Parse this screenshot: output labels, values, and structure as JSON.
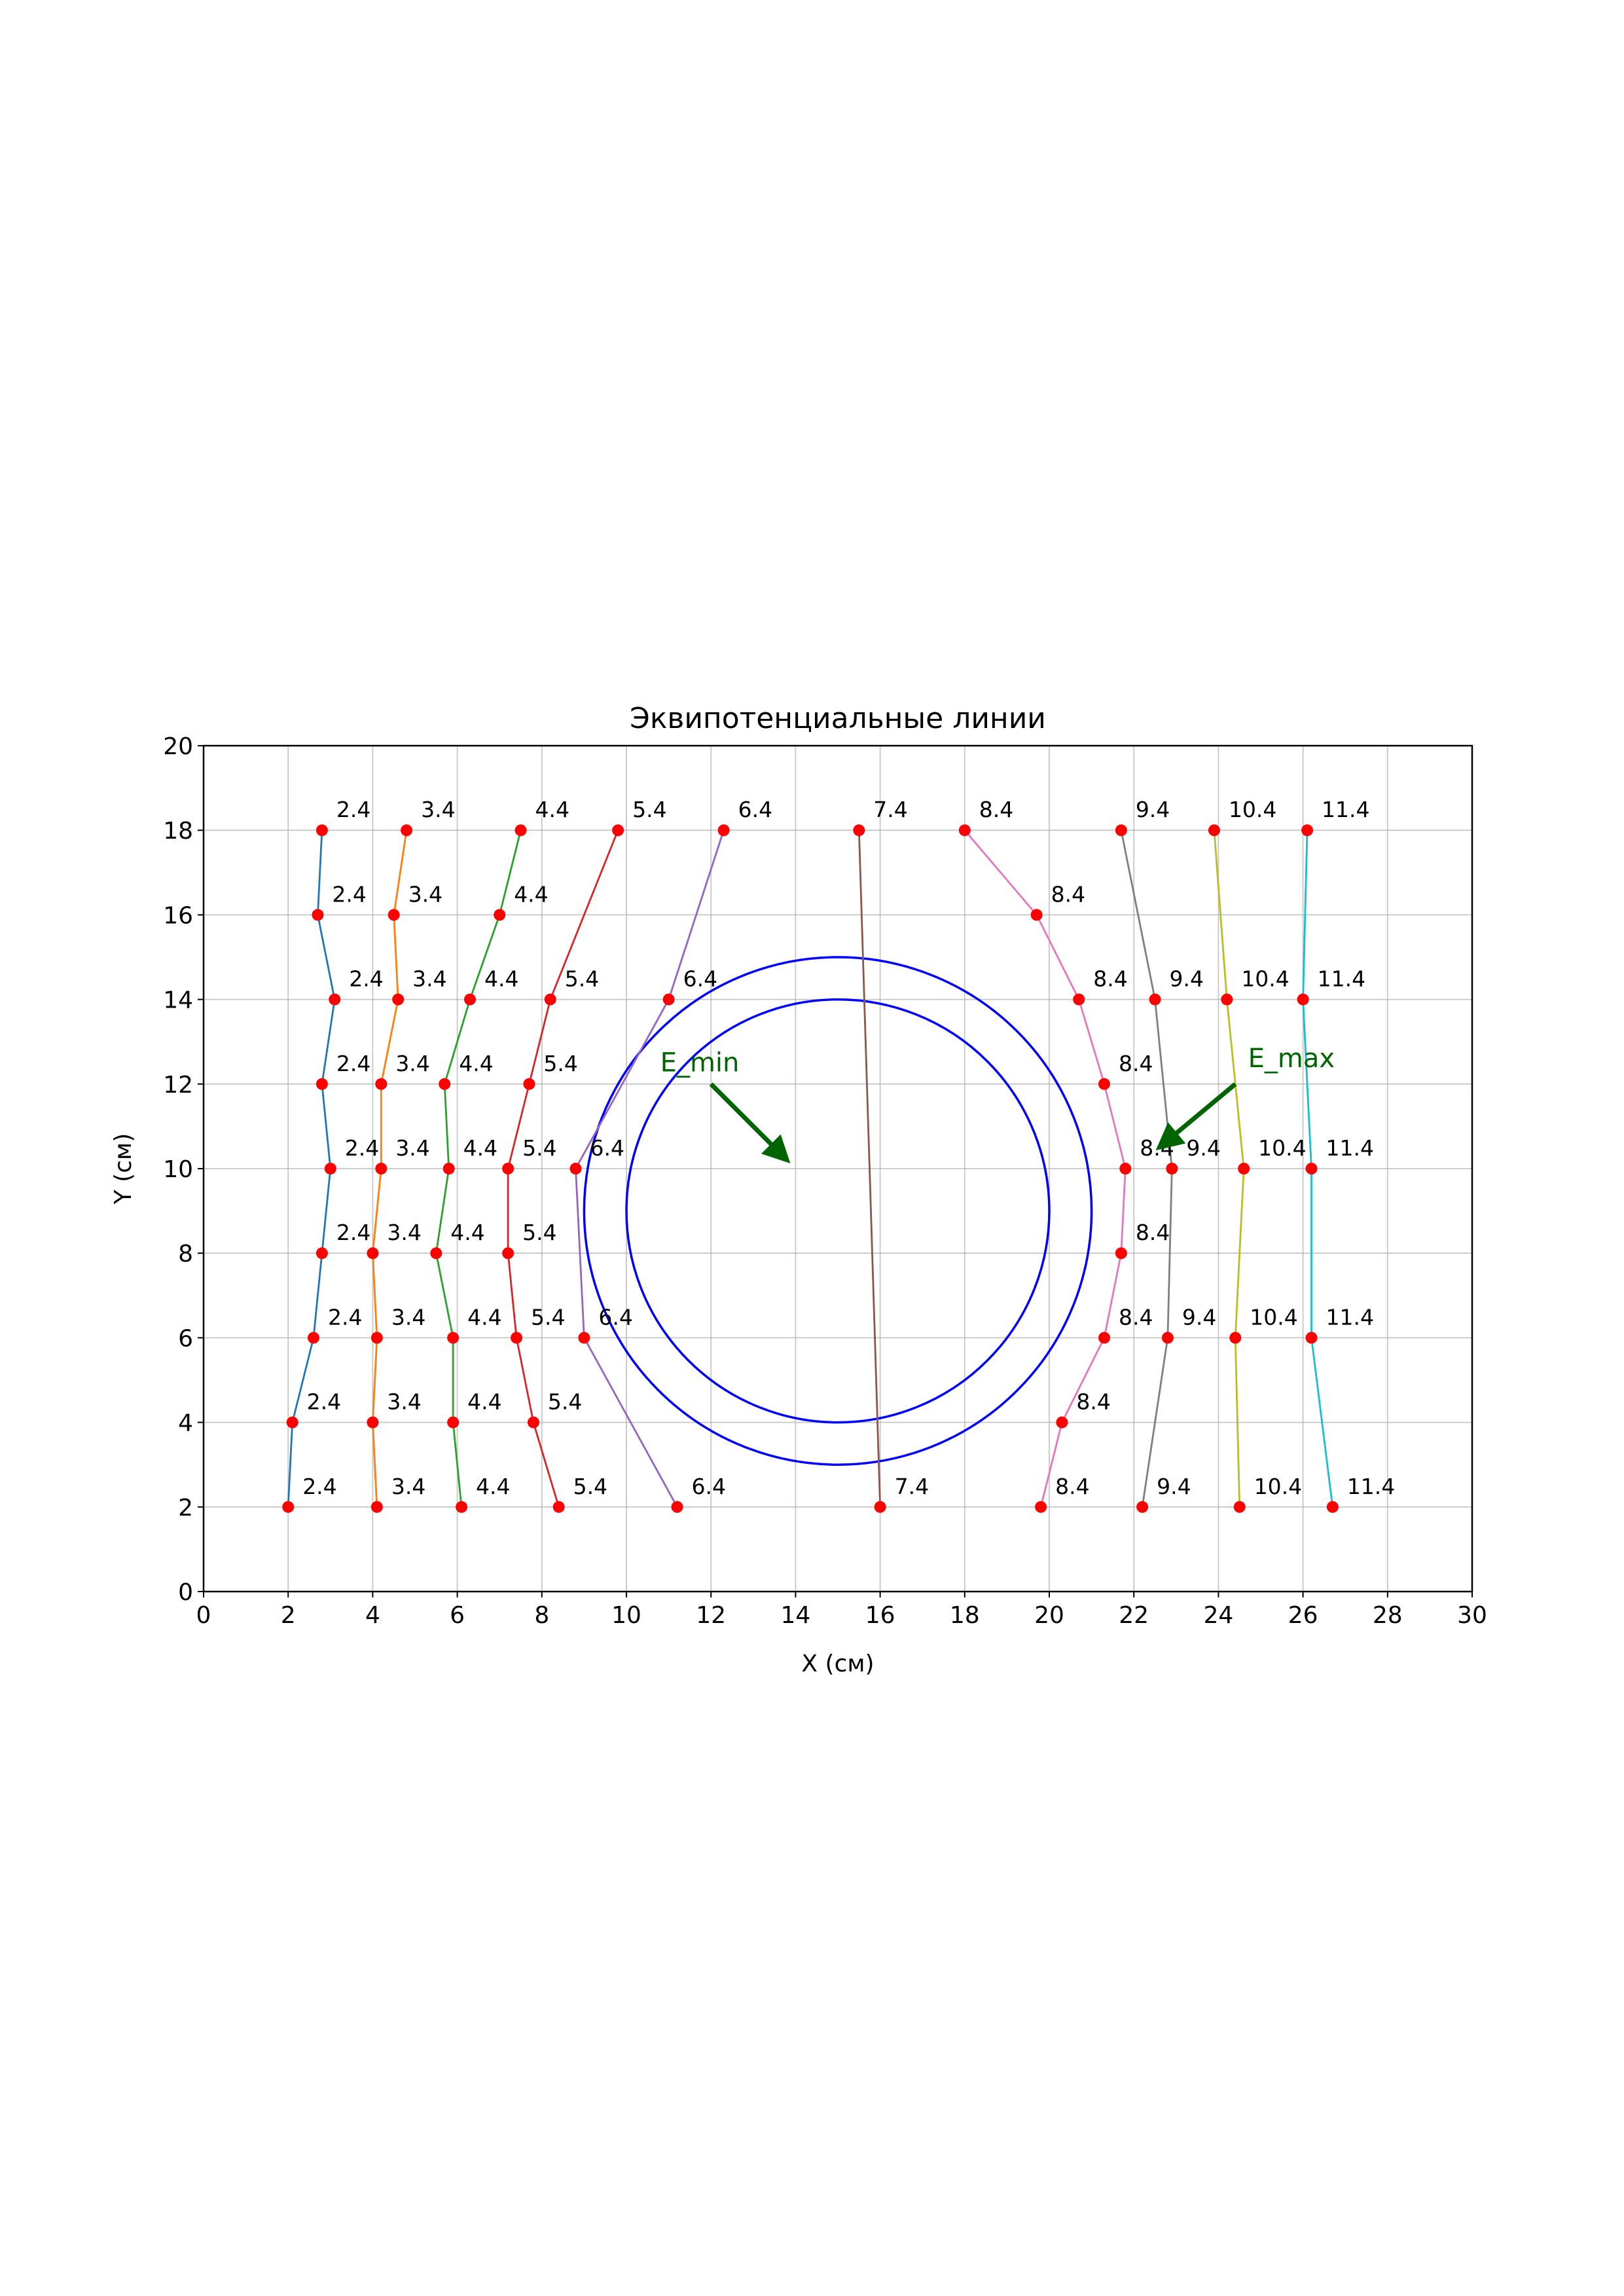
{
  "chart_data": {
    "type": "line",
    "title": "Эквипотенциальные линии",
    "xlabel": "X (см)",
    "ylabel": "Y (см)",
    "xlim": [
      0,
      30
    ],
    "ylim": [
      0,
      20
    ],
    "xticks": [
      "0",
      "2",
      "4",
      "6",
      "8",
      "10",
      "12",
      "14",
      "16",
      "18",
      "20",
      "22",
      "24",
      "26",
      "28",
      "30"
    ],
    "yticks": [
      "0",
      "2",
      "4",
      "6",
      "8",
      "10",
      "12",
      "14",
      "16",
      "18",
      "20"
    ],
    "grid": true,
    "marker_color": "#ff0000",
    "series": [
      {
        "label": "2.4",
        "color": "#1f77b4",
        "points": [
          [
            2.8,
            18
          ],
          [
            2.7,
            16
          ],
          [
            3.1,
            14
          ],
          [
            2.8,
            12
          ],
          [
            3.0,
            10
          ],
          [
            2.8,
            8
          ],
          [
            2.6,
            6
          ],
          [
            2.1,
            4
          ],
          [
            2.0,
            2
          ]
        ]
      },
      {
        "label": "3.4",
        "color": "#ff7f0e",
        "points": [
          [
            4.8,
            18
          ],
          [
            4.5,
            16
          ],
          [
            4.6,
            14
          ],
          [
            4.2,
            12
          ],
          [
            4.2,
            10
          ],
          [
            4.0,
            8
          ],
          [
            4.1,
            6
          ],
          [
            4.0,
            4
          ],
          [
            4.1,
            2
          ]
        ]
      },
      {
        "label": "4.4",
        "color": "#2ca02c",
        "points": [
          [
            7.5,
            18
          ],
          [
            7.0,
            16
          ],
          [
            6.3,
            14
          ],
          [
            5.7,
            12
          ],
          [
            5.8,
            10
          ],
          [
            5.5,
            8
          ],
          [
            5.9,
            6
          ],
          [
            5.9,
            4
          ],
          [
            6.1,
            2
          ]
        ]
      },
      {
        "label": "5.4",
        "color": "#d62728",
        "points": [
          [
            9.8,
            18
          ],
          [
            8.2,
            14
          ],
          [
            7.7,
            12
          ],
          [
            7.2,
            10
          ],
          [
            7.2,
            8
          ],
          [
            7.4,
            6
          ],
          [
            7.8,
            4
          ],
          [
            8.4,
            2
          ]
        ]
      },
      {
        "label": "6.4",
        "color": "#9467bd",
        "points": [
          [
            12.3,
            18
          ],
          [
            11.0,
            14
          ],
          [
            8.8,
            10
          ],
          [
            9.0,
            6
          ],
          [
            11.2,
            2
          ]
        ]
      },
      {
        "label": "7.4",
        "color": "#8c564b",
        "points": [
          [
            15.5,
            18
          ],
          [
            16.0,
            2
          ]
        ]
      },
      {
        "label": "8.4",
        "color": "#e377c2",
        "points": [
          [
            18.0,
            18
          ],
          [
            19.7,
            16
          ],
          [
            20.7,
            14
          ],
          [
            21.3,
            12
          ],
          [
            21.8,
            10
          ],
          [
            21.7,
            8
          ],
          [
            21.3,
            6
          ],
          [
            20.3,
            4
          ],
          [
            19.8,
            2
          ]
        ]
      },
      {
        "label": "9.4",
        "color": "#7f7f7f",
        "points": [
          [
            21.7,
            18
          ],
          [
            22.5,
            14
          ],
          [
            22.9,
            10
          ],
          [
            22.8,
            6
          ],
          [
            22.2,
            2
          ]
        ]
      },
      {
        "label": "10.4",
        "color": "#bcbd22",
        "points": [
          [
            23.9,
            18
          ],
          [
            24.2,
            14
          ],
          [
            24.6,
            10
          ],
          [
            24.4,
            6
          ],
          [
            24.5,
            2
          ]
        ]
      },
      {
        "label": "11.4",
        "color": "#17becf",
        "points": [
          [
            26.1,
            18
          ],
          [
            26.0,
            14
          ],
          [
            26.2,
            10
          ],
          [
            26.2,
            6
          ],
          [
            26.7,
            2
          ]
        ]
      }
    ],
    "circles": [
      {
        "center": [
          15,
          9
        ],
        "radius": 6,
        "color": "#0000ff"
      },
      {
        "center": [
          15,
          9
        ],
        "radius": 5,
        "color": "#0000ff"
      }
    ],
    "annotations": [
      {
        "text": "E_min",
        "text_at": [
          10.8,
          12.3
        ],
        "arrow_from": [
          12.0,
          12.0
        ],
        "arrow_to": [
          13.8,
          10.2
        ],
        "color": "#006400"
      },
      {
        "text": "E_max",
        "text_at": [
          24.7,
          12.4
        ],
        "arrow_from": [
          24.4,
          12.0
        ],
        "arrow_to": [
          22.6,
          10.5
        ],
        "color": "#006400"
      }
    ]
  }
}
